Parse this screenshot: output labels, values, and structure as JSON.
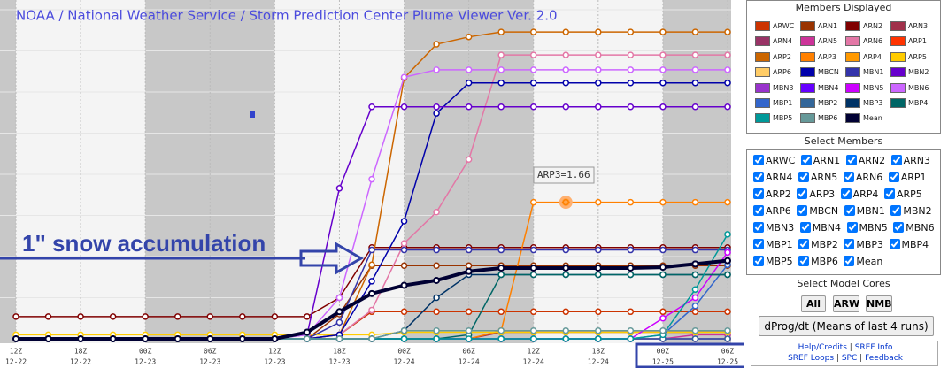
{
  "chart_data": {
    "type": "line",
    "title": "NOAA / National Weather Service / Storm Prediction Center Plume Viewer Ver. 2.0",
    "categories": [
      [
        "12Z",
        "12-22"
      ],
      null,
      [
        "18Z",
        "12-22"
      ],
      null,
      [
        "00Z",
        "12-23"
      ],
      null,
      [
        "06Z",
        "12-23"
      ],
      null,
      [
        "12Z",
        "12-23"
      ],
      null,
      [
        "18Z",
        "12-23"
      ],
      null,
      [
        "00Z",
        "12-24"
      ],
      null,
      [
        "06Z",
        "12-24"
      ],
      null,
      [
        "12Z",
        "12-24"
      ],
      null,
      [
        "18Z",
        "12-24"
      ],
      null,
      [
        "00Z",
        "12-25"
      ],
      null,
      [
        "06Z",
        "12-25"
      ]
    ],
    "ylim": [
      0,
      4
    ],
    "ygrid": [
      0.5,
      1,
      1.5,
      2,
      2.5,
      3,
      3.5,
      4
    ],
    "grid": true,
    "series": [
      {
        "name": "ARWC",
        "color": "#cc3300",
        "values": [
          0,
          0,
          0,
          0,
          0,
          0,
          0,
          0,
          0,
          0,
          0.05,
          0.33,
          0.33,
          0.33,
          0.33,
          0.33,
          0.33,
          0.33,
          0.33,
          0.33,
          0.33,
          0.33,
          0.33
        ]
      },
      {
        "name": "ARN1",
        "color": "#993300",
        "values": [
          0,
          0,
          0,
          0,
          0,
          0,
          0,
          0,
          0,
          0,
          0.3,
          0.89,
          0.89,
          0.89,
          0.89,
          0.89,
          0.89,
          0.89,
          0.89,
          0.89,
          0.89,
          0.89,
          0.89
        ]
      },
      {
        "name": "ARN2",
        "color": "#800000",
        "values": [
          0.27,
          0.27,
          0.27,
          0.27,
          0.27,
          0.27,
          0.27,
          0.27,
          0.27,
          0.27,
          0.5,
          1.11,
          1.11,
          1.11,
          1.11,
          1.11,
          1.11,
          1.11,
          1.11,
          1.11,
          1.11,
          1.11,
          1.11
        ]
      },
      {
        "name": "ARN3",
        "color": "#a0304a",
        "values": [
          0,
          0,
          0,
          0,
          0,
          0,
          0,
          0,
          0,
          0,
          0,
          0,
          0,
          0,
          0,
          0.08,
          0.08,
          0.08,
          0.08,
          0.08,
          0.08,
          0.08,
          0.08
        ]
      },
      {
        "name": "ARN4",
        "color": "#993366",
        "values": [
          0,
          0,
          0,
          0,
          0,
          0,
          0,
          0,
          0,
          0,
          0,
          0,
          0,
          0,
          0,
          0,
          0,
          0,
          0,
          0,
          0,
          0,
          0
        ]
      },
      {
        "name": "ARN5",
        "color": "#cc3399",
        "values": [
          0,
          0,
          0,
          0,
          0,
          0,
          0,
          0,
          0,
          0,
          0,
          0,
          0,
          0,
          0,
          0,
          0,
          0,
          0,
          0,
          0,
          0.05,
          0.05
        ]
      },
      {
        "name": "ARN6",
        "color": "#e377a6",
        "values": [
          0,
          0,
          0,
          0,
          0,
          0,
          0,
          0,
          0,
          0,
          0.05,
          0.35,
          1.16,
          1.54,
          2.18,
          3.45,
          3.45,
          3.45,
          3.45,
          3.45,
          3.45,
          3.45,
          3.45
        ]
      },
      {
        "name": "ARP1",
        "color": "#ff3300",
        "values": [
          0,
          0,
          0,
          0,
          0,
          0,
          0,
          0,
          0,
          0,
          0,
          0,
          0,
          0,
          0,
          0,
          0,
          0,
          0,
          0,
          0,
          0,
          0
        ]
      },
      {
        "name": "ARP2",
        "color": "#cc6600",
        "values": [
          0,
          0,
          0,
          0,
          0,
          0,
          0,
          0,
          0,
          0,
          0.05,
          0.9,
          3.17,
          3.58,
          3.67,
          3.73,
          3.73,
          3.73,
          3.73,
          3.73,
          3.73,
          3.73,
          3.73
        ]
      },
      {
        "name": "ARP3",
        "color": "#ff8000",
        "values": [
          0,
          0,
          0,
          0,
          0,
          0,
          0,
          0,
          0,
          0,
          0,
          0,
          0,
          0,
          0,
          0.1,
          1.66,
          1.66,
          1.66,
          1.66,
          1.66,
          1.66,
          1.66
        ]
      },
      {
        "name": "ARP4",
        "color": "#ff9900",
        "values": [
          0,
          0,
          0,
          0,
          0,
          0,
          0,
          0,
          0,
          0,
          0,
          0,
          0,
          0,
          0,
          0,
          0,
          0,
          0,
          0,
          0,
          0,
          0
        ]
      },
      {
        "name": "ARP5",
        "color": "#ffcc00",
        "values": [
          0.05,
          0.05,
          0.05,
          0.05,
          0.05,
          0.05,
          0.05,
          0.05,
          0.05,
          0.05,
          0.05,
          0.05,
          0.08,
          0.08,
          0.08,
          0.08,
          0.08,
          0.08,
          0.08,
          0.08,
          0.08,
          0.08,
          0.08
        ]
      },
      {
        "name": "ARP6",
        "color": "#ffcc66",
        "values": [
          0,
          0,
          0,
          0,
          0,
          0,
          0,
          0,
          0,
          0,
          0,
          0,
          0,
          0,
          0,
          0,
          0,
          0,
          0,
          0,
          0,
          0,
          0
        ]
      },
      {
        "name": "MBCN",
        "color": "#0000aa",
        "values": [
          0,
          0,
          0,
          0,
          0,
          0,
          0,
          0,
          0,
          0,
          0.05,
          0.7,
          1.43,
          2.74,
          3.11,
          3.11,
          3.11,
          3.11,
          3.11,
          3.11,
          3.11,
          3.11,
          3.11
        ]
      },
      {
        "name": "MBN1",
        "color": "#3333aa",
        "values": [
          0,
          0,
          0,
          0,
          0,
          0,
          0,
          0,
          0,
          0,
          0.2,
          1.08,
          1.08,
          1.08,
          1.08,
          1.08,
          1.08,
          1.08,
          1.08,
          1.08,
          1.08,
          1.08,
          1.08
        ]
      },
      {
        "name": "MBN2",
        "color": "#6600cc",
        "values": [
          0,
          0,
          0,
          0,
          0,
          0,
          0,
          0,
          0,
          0.05,
          1.83,
          2.82,
          2.82,
          2.82,
          2.82,
          2.82,
          2.82,
          2.82,
          2.82,
          2.82,
          2.82,
          2.82,
          2.82
        ]
      },
      {
        "name": "MBN3",
        "color": "#9933cc",
        "values": [
          0,
          0,
          0,
          0,
          0,
          0,
          0,
          0,
          0,
          0,
          0,
          0,
          0,
          0,
          0,
          0,
          0,
          0,
          0,
          0,
          0,
          0,
          0
        ]
      },
      {
        "name": "MBN4",
        "color": "#6600ff",
        "values": [
          0,
          0,
          0,
          0,
          0,
          0,
          0,
          0,
          0,
          0,
          0,
          0,
          0,
          0,
          0,
          0,
          0,
          0,
          0,
          0,
          0,
          0,
          0
        ]
      },
      {
        "name": "MBN5",
        "color": "#cc00ff",
        "values": [
          0,
          0,
          0,
          0,
          0,
          0,
          0,
          0,
          0,
          0,
          0,
          0,
          0,
          0,
          0,
          0,
          0,
          0,
          0,
          0,
          0.25,
          0.5,
          1.05
        ]
      },
      {
        "name": "MBN6",
        "color": "#cc66ff",
        "values": [
          0,
          0,
          0,
          0,
          0,
          0,
          0,
          0,
          0,
          0.05,
          0.5,
          1.94,
          3.18,
          3.27,
          3.27,
          3.27,
          3.27,
          3.27,
          3.27,
          3.27,
          3.27,
          3.27,
          3.27
        ]
      },
      {
        "name": "MBP1",
        "color": "#3366cc",
        "values": [
          0,
          0,
          0,
          0,
          0,
          0,
          0,
          0,
          0,
          0,
          0,
          0,
          0,
          0,
          0,
          0,
          0,
          0,
          0,
          0,
          0.05,
          0.4,
          0.9
        ]
      },
      {
        "name": "MBP2",
        "color": "#336699",
        "values": [
          0,
          0,
          0,
          0,
          0,
          0,
          0,
          0,
          0,
          0,
          0,
          0,
          0,
          0,
          0,
          0,
          0,
          0,
          0,
          0,
          0,
          0,
          0
        ]
      },
      {
        "name": "MBP3",
        "color": "#003366",
        "values": [
          0,
          0,
          0,
          0,
          0,
          0,
          0,
          0,
          0,
          0,
          0,
          0,
          0.1,
          0.5,
          0.78,
          0.78,
          0.78,
          0.78,
          0.78,
          0.78,
          0.78,
          0.78,
          0.78
        ]
      },
      {
        "name": "MBP4",
        "color": "#006666",
        "values": [
          0,
          0,
          0,
          0,
          0,
          0,
          0,
          0,
          0,
          0,
          0,
          0,
          0,
          0,
          0.05,
          0.78,
          0.78,
          0.78,
          0.78,
          0.78,
          0.78,
          0.78,
          0.78
        ]
      },
      {
        "name": "MBP5",
        "color": "#009999",
        "values": [
          0,
          0,
          0,
          0,
          0,
          0,
          0,
          0,
          0,
          0,
          0,
          0,
          0,
          0,
          0,
          0,
          0,
          0,
          0,
          0,
          0.05,
          0.6,
          1.27
        ]
      },
      {
        "name": "MBP6",
        "color": "#669999",
        "values": [
          0,
          0,
          0,
          0,
          0,
          0,
          0,
          0,
          0,
          0,
          0,
          0,
          0.1,
          0.1,
          0.1,
          0.1,
          0.1,
          0.1,
          0.1,
          0.1,
          0.1,
          0.1,
          0.1
        ]
      },
      {
        "name": "Mean",
        "color": "#000033",
        "values": [
          0,
          0,
          0,
          0,
          0,
          0,
          0,
          0,
          0,
          0.08,
          0.33,
          0.55,
          0.65,
          0.71,
          0.82,
          0.86,
          0.86,
          0.86,
          0.86,
          0.86,
          0.87,
          0.91,
          0.95
        ]
      }
    ],
    "annotation": "1\" snow accumulation",
    "tooltip": "ARP3=1.66"
  },
  "panel": {
    "members_title": "Members Displayed",
    "select_title": "Select Members",
    "cores_title": "Select Model Cores",
    "core_buttons": [
      "All",
      "ARW",
      "NMB"
    ],
    "dprog": "dProg/dt (Means of last 4 runs)",
    "links": [
      [
        "Help/Credits",
        "SREF Info"
      ],
      [
        "SREF Loops",
        "SPC",
        "Feedback"
      ]
    ],
    "separator": "|"
  }
}
